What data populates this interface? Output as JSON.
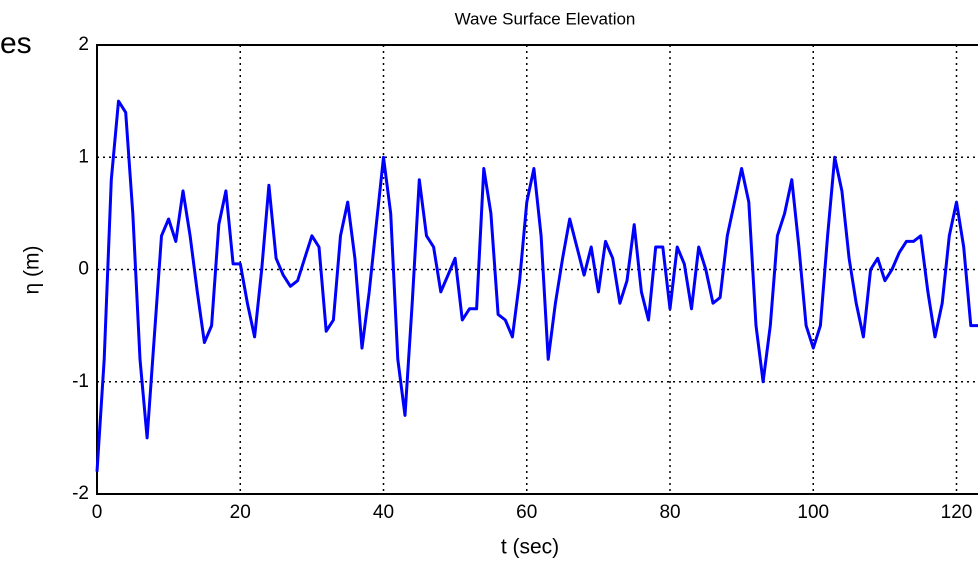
{
  "side_text": "es",
  "chart_data": {
    "type": "line",
    "title": "Wave Surface Elevation",
    "x_label": "t (sec)",
    "y_label": "η (m)",
    "x": [
      0,
      1,
      2,
      3,
      4,
      5,
      6,
      7,
      8,
      9,
      10,
      11,
      12,
      13,
      14,
      15,
      16,
      17,
      18,
      19,
      20,
      21,
      22,
      23,
      24,
      25,
      26,
      27,
      28,
      29,
      30,
      31,
      32,
      33,
      34,
      35,
      36,
      37,
      38,
      39,
      40,
      41,
      42,
      43,
      44,
      45,
      46,
      47,
      48,
      49,
      50,
      51,
      52,
      53,
      54,
      55,
      56,
      57,
      58,
      59,
      60,
      61,
      62,
      63,
      64,
      65,
      66,
      67,
      68,
      69,
      70,
      71,
      72,
      73,
      74,
      75,
      76,
      77,
      78,
      79,
      80,
      81,
      82,
      83,
      84,
      85,
      86,
      87,
      88,
      89,
      90,
      91,
      92,
      93,
      94,
      95,
      96,
      97,
      98,
      99,
      100,
      101,
      102,
      103,
      104,
      105,
      106,
      107,
      108,
      109,
      110,
      111,
      112,
      113,
      114,
      115,
      116,
      117,
      118,
      119,
      120,
      121,
      122,
      123
    ],
    "series": [
      {
        "name": "η",
        "color": "#0000ff",
        "values": [
          -1.8,
          -0.8,
          0.8,
          1.5,
          1.4,
          0.5,
          -0.8,
          -1.5,
          -0.6,
          0.3,
          0.45,
          0.25,
          0.7,
          0.3,
          -0.2,
          -0.65,
          -0.5,
          0.4,
          0.7,
          0.05,
          0.05,
          -0.3,
          -0.6,
          0.0,
          0.75,
          0.1,
          -0.05,
          -0.15,
          -0.1,
          0.1,
          0.3,
          0.2,
          -0.55,
          -0.45,
          0.3,
          0.6,
          0.1,
          -0.7,
          -0.2,
          0.4,
          1.0,
          0.5,
          -0.8,
          -1.3,
          -0.3,
          0.8,
          0.3,
          0.2,
          -0.2,
          -0.05,
          0.1,
          -0.45,
          -0.35,
          -0.35,
          0.9,
          0.5,
          -0.4,
          -0.45,
          -0.6,
          -0.1,
          0.6,
          0.9,
          0.3,
          -0.8,
          -0.3,
          0.1,
          0.45,
          0.2,
          -0.05,
          0.2,
          -0.2,
          0.25,
          0.1,
          -0.3,
          -0.1,
          0.4,
          -0.2,
          -0.45,
          0.2,
          0.2,
          -0.35,
          0.2,
          0.05,
          -0.35,
          0.2,
          0.0,
          -0.3,
          -0.25,
          0.3,
          0.6,
          0.9,
          0.6,
          -0.5,
          -1.0,
          -0.5,
          0.3,
          0.5,
          0.8,
          0.2,
          -0.5,
          -0.7,
          -0.5,
          0.3,
          1.0,
          0.7,
          0.1,
          -0.3,
          -0.6,
          0.0,
          0.1,
          -0.1,
          0.0,
          0.15,
          0.25,
          0.25,
          0.3,
          -0.2,
          -0.6,
          -0.3,
          0.3,
          0.6,
          0.2,
          -0.5,
          -0.5
        ]
      }
    ],
    "xlim": [
      0,
      123
    ],
    "ylim": [
      -2,
      2
    ],
    "xticks": [
      0,
      20,
      40,
      60,
      80,
      100,
      120
    ],
    "yticks": [
      2,
      1,
      0,
      -1,
      -2
    ],
    "grid": true
  }
}
